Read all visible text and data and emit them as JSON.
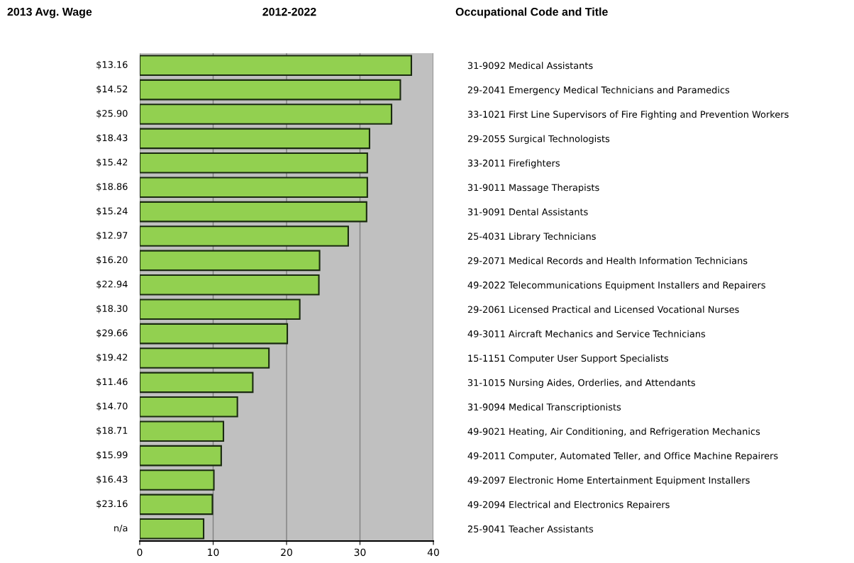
{
  "chart_data": {
    "type": "bar",
    "orientation": "horizontal",
    "title": "2012-2022",
    "y2label": "Occupational Code and Title",
    "categories": [
      "31-9092 Medical Assistants",
      "29-2041 Emergency Medical Technicians and Paramedics",
      "33-1021 First Line Supervisors of Fire Fighting and Prevention Workers",
      "29-2055 Surgical Technologists",
      "33-2011 Firefighters",
      "31-9011 Massage Therapists",
      "31-9091 Dental Assistants",
      "25-4031 Library Technicians",
      "29-2071 Medical Records and Health Information Technicians",
      "49-2022 Telecommunications Equipment Installers and Repairers",
      "29-2061 Licensed Practical and Licensed Vocational Nurses",
      "49-3011 Aircraft Mechanics and Service Technicians",
      "15-1151 Computer User Support Specialists",
      "31-1015 Nursing Aides, Orderlies, and Attendants",
      "31-9094 Medical Transcriptionists",
      "49-9021 Heating, Air Conditioning, and Refrigeration Mechanics",
      "49-2011 Computer, Automated Teller, and Office Machine Repairers",
      "49-2097 Electronic Home Entertainment Equipment Installers",
      "49-2094 Electrical and Electronics Repairers",
      "25-9041 Teacher Assistants"
    ],
    "values": [
      37.0,
      35.5,
      34.3,
      31.3,
      31.0,
      31.0,
      30.9,
      28.4,
      24.5,
      24.4,
      21.8,
      20.1,
      17.6,
      15.4,
      13.3,
      11.4,
      11.1,
      10.1,
      9.9,
      8.7
    ],
    "color": "#92d050",
    "annotations": [
      "2013 Avg. Wage",
      "$13.16",
      "$14.52",
      "$25.90",
      "$18.43",
      "$15.42",
      "$18.86",
      "$15.24",
      "$12.97",
      "$16.20",
      "$22.94",
      "$18.30",
      "$29.66",
      "$19.42",
      "$11.46",
      "$14.70",
      "$18.71",
      "$15.99",
      "$16.43",
      "$23.16",
      "n/a"
    ],
    "xlim": [
      0,
      40
    ],
    "xticks": [
      0,
      10,
      20,
      30,
      40
    ],
    "grid": "x"
  }
}
